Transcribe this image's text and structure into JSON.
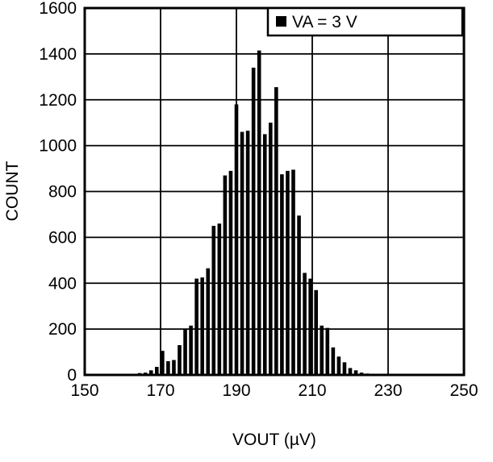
{
  "chart_data": {
    "type": "bar",
    "subtype": "histogram",
    "title": "",
    "xlabel": "VOUT (µV)",
    "ylabel": "COUNT",
    "legend": {
      "marker": "filled-square",
      "label": "VA = 3 V",
      "position": "top-right-inside"
    },
    "xlim": [
      150,
      250
    ],
    "ylim": [
      0,
      1600
    ],
    "xticks": [
      150,
      170,
      190,
      210,
      230,
      250
    ],
    "yticks": [
      0,
      200,
      400,
      600,
      800,
      1000,
      1200,
      1400,
      1600
    ],
    "grid": true,
    "bar_color": "#000000",
    "frame_color": "#000000",
    "background_color": "#ffffff",
    "bin_width_uV": 1.5,
    "x": [
      163,
      164.5,
      166,
      167.5,
      169,
      170.5,
      172,
      173.5,
      175,
      176.5,
      178,
      179.5,
      181,
      182.5,
      184,
      185.5,
      187,
      188.5,
      190,
      191.5,
      193,
      194.5,
      196,
      197.5,
      199,
      200.5,
      202,
      203.5,
      205,
      206.5,
      208,
      209.5,
      211,
      212.5,
      214,
      215.5,
      217,
      218.5,
      220,
      221.5,
      223,
      224.5
    ],
    "counts": [
      5,
      8,
      10,
      20,
      35,
      105,
      60,
      65,
      130,
      200,
      215,
      420,
      425,
      465,
      650,
      660,
      870,
      890,
      1180,
      1060,
      1065,
      1340,
      1415,
      1050,
      1100,
      1255,
      875,
      890,
      895,
      695,
      445,
      420,
      370,
      215,
      205,
      120,
      80,
      55,
      30,
      20,
      10,
      6
    ]
  }
}
